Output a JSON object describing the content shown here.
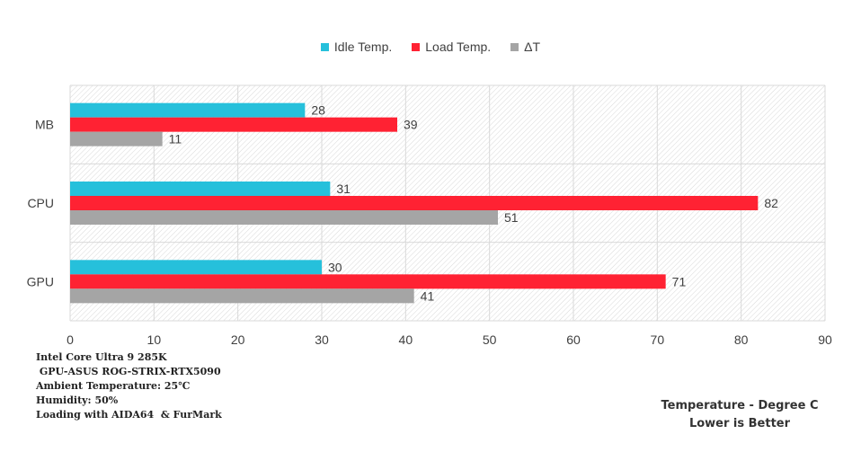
{
  "chart_data": {
    "type": "bar",
    "orientation": "horizontal",
    "categories": [
      "MB",
      "CPU",
      "GPU"
    ],
    "series": [
      {
        "name": "Idle Temp.",
        "color": "#26c0db",
        "values": [
          28,
          31,
          30
        ]
      },
      {
        "name": "Load Temp.",
        "color": "#ff2233",
        "values": [
          39,
          82,
          71
        ]
      },
      {
        "name": "ΔT",
        "color": "#a5a5a5",
        "values": [
          11,
          51,
          41
        ]
      }
    ],
    "xlim": [
      0,
      90
    ],
    "x_ticks": [
      0,
      10,
      20,
      30,
      40,
      50,
      60,
      70,
      80,
      90
    ],
    "legend_position": "top",
    "grid": true
  },
  "notes": [
    "Intel Core Ultra 9 285K",
    " GPU-ASUS ROG-STRIX-RTX5090",
    "Ambient Temperature: 25℃",
    "Humidity: 50%",
    "Loading with AIDA64  & FurMark"
  ],
  "footer": {
    "line1": "Temperature - Degree C",
    "line2": "Lower is Better"
  }
}
